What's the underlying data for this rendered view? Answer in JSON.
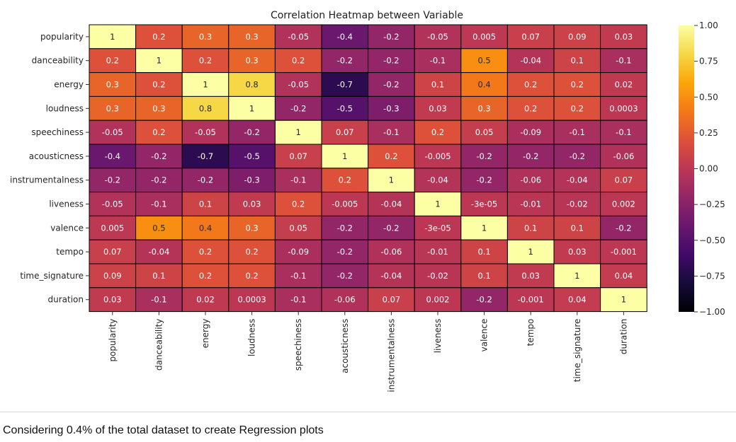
{
  "chart_data": {
    "type": "heatmap",
    "title": "Correlation Heatmap between Variable",
    "rows": [
      "popularity",
      "danceability",
      "energy",
      "loudness",
      "speechiness",
      "acousticness",
      "instrumentalness",
      "liveness",
      "valence",
      "tempo",
      "time_signature",
      "duration"
    ],
    "columns": [
      "popularity",
      "danceability",
      "energy",
      "loudness",
      "speechiness",
      "acousticness",
      "instrumentalness",
      "liveness",
      "valence",
      "tempo",
      "time_signature",
      "duration"
    ],
    "values": [
      [
        1,
        0.2,
        0.3,
        0.3,
        -0.05,
        -0.4,
        -0.2,
        -0.05,
        0.005,
        0.07,
        0.09,
        0.03
      ],
      [
        0.2,
        1,
        0.2,
        0.3,
        0.2,
        -0.2,
        -0.2,
        -0.1,
        0.5,
        -0.04,
        0.1,
        -0.1
      ],
      [
        0.3,
        0.2,
        1,
        0.8,
        -0.05,
        -0.7,
        -0.2,
        0.1,
        0.4,
        0.2,
        0.2,
        0.02
      ],
      [
        0.3,
        0.3,
        0.8,
        1,
        -0.2,
        -0.5,
        -0.3,
        0.03,
        0.3,
        0.2,
        0.2,
        0.0003
      ],
      [
        -0.05,
        0.2,
        -0.05,
        -0.2,
        1,
        0.07,
        -0.1,
        0.2,
        0.05,
        -0.09,
        -0.1,
        -0.1
      ],
      [
        -0.4,
        -0.2,
        -0.7,
        -0.5,
        0.07,
        1,
        0.2,
        -0.005,
        -0.2,
        -0.2,
        -0.2,
        -0.06
      ],
      [
        -0.2,
        -0.2,
        -0.2,
        -0.3,
        -0.1,
        0.2,
        1,
        -0.04,
        -0.2,
        -0.06,
        -0.04,
        0.07
      ],
      [
        -0.05,
        -0.1,
        0.1,
        0.03,
        0.2,
        -0.005,
        -0.04,
        1,
        -3e-05,
        -0.01,
        -0.02,
        0.002
      ],
      [
        0.005,
        0.5,
        0.4,
        0.3,
        0.05,
        -0.2,
        -0.2,
        -3e-05,
        1,
        0.1,
        0.1,
        -0.2
      ],
      [
        0.07,
        -0.04,
        0.2,
        0.2,
        -0.09,
        -0.2,
        -0.06,
        -0.01,
        0.1,
        1,
        0.03,
        -0.001
      ],
      [
        0.09,
        0.1,
        0.2,
        0.2,
        -0.1,
        -0.2,
        -0.04,
        -0.02,
        0.1,
        0.03,
        1,
        0.04
      ],
      [
        0.03,
        -0.1,
        0.02,
        0.0003,
        -0.1,
        -0.06,
        0.07,
        0.002,
        -0.2,
        -0.001,
        0.04,
        1
      ]
    ],
    "labels": [
      [
        "1",
        "0.2",
        "0.3",
        "0.3",
        "-0.05",
        "-0.4",
        "-0.2",
        "-0.05",
        "0.005",
        "0.07",
        "0.09",
        "0.03"
      ],
      [
        "0.2",
        "1",
        "0.2",
        "0.3",
        "0.2",
        "-0.2",
        "-0.2",
        "-0.1",
        "0.5",
        "-0.04",
        "0.1",
        "-0.1"
      ],
      [
        "0.3",
        "0.2",
        "1",
        "0.8",
        "-0.05",
        "-0.7",
        "-0.2",
        "0.1",
        "0.4",
        "0.2",
        "0.2",
        "0.02"
      ],
      [
        "0.3",
        "0.3",
        "0.8",
        "1",
        "-0.2",
        "-0.5",
        "-0.3",
        "0.03",
        "0.3",
        "0.2",
        "0.2",
        "0.0003"
      ],
      [
        "-0.05",
        "0.2",
        "-0.05",
        "-0.2",
        "1",
        "0.07",
        "-0.1",
        "0.2",
        "0.05",
        "-0.09",
        "-0.1",
        "-0.1"
      ],
      [
        "-0.4",
        "-0.2",
        "-0.7",
        "-0.5",
        "0.07",
        "1",
        "0.2",
        "-0.005",
        "-0.2",
        "-0.2",
        "-0.2",
        "-0.06"
      ],
      [
        "-0.2",
        "-0.2",
        "-0.2",
        "-0.3",
        "-0.1",
        "0.2",
        "1",
        "-0.04",
        "-0.2",
        "-0.06",
        "-0.04",
        "0.07"
      ],
      [
        "-0.05",
        "-0.1",
        "0.1",
        "0.03",
        "0.2",
        "-0.005",
        "-0.04",
        "1",
        "-3e-05",
        "-0.01",
        "-0.02",
        "0.002"
      ],
      [
        "0.005",
        "0.5",
        "0.4",
        "0.3",
        "0.05",
        "-0.2",
        "-0.2",
        "-3e-05",
        "1",
        "0.1",
        "0.1",
        "-0.2"
      ],
      [
        "0.07",
        "-0.04",
        "0.2",
        "0.2",
        "-0.09",
        "-0.2",
        "-0.06",
        "-0.01",
        "0.1",
        "1",
        "0.03",
        "-0.001"
      ],
      [
        "0.09",
        "0.1",
        "0.2",
        "0.2",
        "-0.1",
        "-0.2",
        "-0.04",
        "-0.02",
        "0.1",
        "0.03",
        "1",
        "0.04"
      ],
      [
        "0.03",
        "-0.1",
        "0.02",
        "0.0003",
        "-0.1",
        "-0.06",
        "0.07",
        "0.002",
        "-0.2",
        "-0.001",
        "0.04",
        "1"
      ]
    ],
    "vmin": -1,
    "vmax": 1,
    "colormap": "inferno",
    "cell_border_color": "#000000",
    "colorbar_ticks": [
      "1.00",
      "0.75",
      "0.50",
      "0.25",
      "0.00",
      "−0.25",
      "−0.50",
      "−0.75",
      "−1.00"
    ],
    "colorbar_tick_values": [
      1.0,
      0.75,
      0.5,
      0.25,
      0.0,
      -0.25,
      -0.5,
      -0.75,
      -1.0
    ]
  },
  "caption": "Considering 0.4% of the total dataset to create Regression plots"
}
